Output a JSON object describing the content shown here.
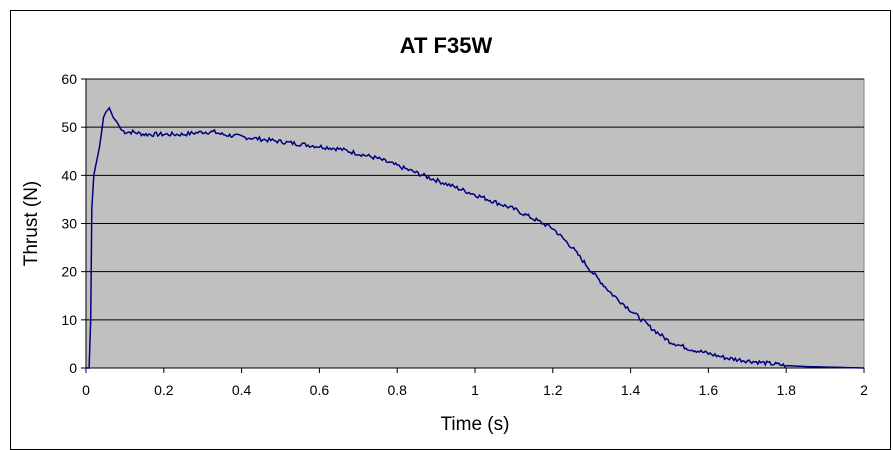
{
  "chart_data": {
    "type": "line",
    "title": "AT F35W",
    "xlabel": "Time (s)",
    "ylabel": "Thrust (N)",
    "xlim": [
      0,
      2
    ],
    "ylim": [
      0,
      60
    ],
    "xticks": [
      "0",
      "0.2",
      "0.4",
      "0.6",
      "0.8",
      "1",
      "1.2",
      "1.4",
      "1.6",
      "1.8",
      "2"
    ],
    "yticks": [
      "0",
      "10",
      "20",
      "30",
      "40",
      "50",
      "60"
    ],
    "grid": "horizontal",
    "legend": "none",
    "plot_background": "#c0c0c0",
    "line_color": "#000080",
    "series": [
      {
        "x": [
          0,
          0.008,
          0.012,
          0.015,
          0.02,
          0.025,
          0.03,
          0.035,
          0.04,
          0.045,
          0.05,
          0.055,
          0.06,
          0.065,
          0.07,
          0.08,
          0.09,
          0.1,
          0.12,
          0.15,
          0.2,
          0.25,
          0.3,
          0.33,
          0.35,
          0.4,
          0.45,
          0.5,
          0.55,
          0.6,
          0.65,
          0.7,
          0.75,
          0.8,
          0.85,
          0.9,
          0.95,
          1.0,
          1.05,
          1.1,
          1.15,
          1.2,
          1.25,
          1.3,
          1.35,
          1.4,
          1.45,
          1.5,
          1.55,
          1.6,
          1.65,
          1.7,
          1.75,
          1.8,
          1.85,
          1.9,
          1.95,
          2.0
        ],
        "y": [
          0,
          0,
          10,
          33,
          40,
          42,
          44,
          46,
          49,
          52,
          53,
          53.5,
          54,
          53,
          52,
          51,
          49.5,
          49,
          49,
          48.5,
          48.5,
          48.5,
          49,
          49,
          48.5,
          48,
          47.5,
          47,
          46.5,
          46,
          45.5,
          44.5,
          43.5,
          42,
          40.5,
          39,
          37.5,
          36,
          34.5,
          33,
          31,
          29,
          25,
          20,
          15.5,
          12,
          8.5,
          5.5,
          4,
          3,
          2,
          1.5,
          1,
          0.5,
          0.3,
          0.2,
          0.1,
          0
        ]
      }
    ]
  }
}
